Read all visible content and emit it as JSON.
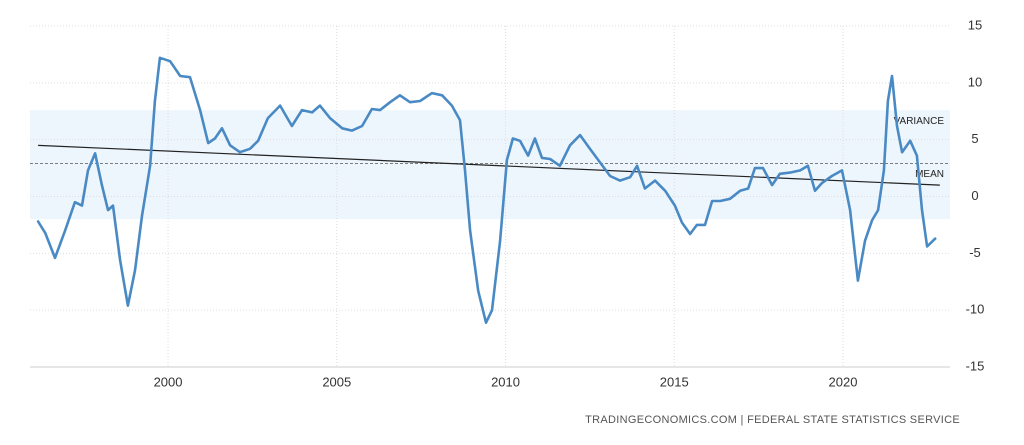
{
  "chart_data": {
    "type": "line",
    "x": [
      1996.15,
      1996.36,
      1996.65,
      1996.95,
      1997.24,
      1997.45,
      1997.63,
      1997.84,
      1998.04,
      1998.22,
      1998.37,
      1998.58,
      1998.81,
      1999.02,
      1999.23,
      1999.47,
      1999.61,
      1999.76,
      2000.06,
      2000.36,
      2000.65,
      2000.95,
      2001.19,
      2001.39,
      2001.6,
      2001.84,
      2002.13,
      2002.43,
      2002.67,
      2002.96,
      2003.32,
      2003.67,
      2003.97,
      2004.27,
      2004.5,
      2004.8,
      2005.16,
      2005.45,
      2005.75,
      2006.04,
      2006.28,
      2006.58,
      2006.87,
      2007.17,
      2007.47,
      2007.82,
      2008.12,
      2008.41,
      2008.65,
      2008.8,
      2008.95,
      2009.19,
      2009.42,
      2009.6,
      2009.84,
      2010.04,
      2010.22,
      2010.43,
      2010.67,
      2010.87,
      2011.08,
      2011.32,
      2011.61,
      2011.91,
      2012.21,
      2012.5,
      2012.8,
      2013.1,
      2013.39,
      2013.69,
      2013.9,
      2014.13,
      2014.43,
      2014.73,
      2015.02,
      2015.23,
      2015.47,
      2015.67,
      2015.91,
      2016.12,
      2016.36,
      2016.65,
      2016.95,
      2017.19,
      2017.39,
      2017.63,
      2017.9,
      2018.13,
      2018.43,
      2018.73,
      2018.96,
      2019.17,
      2019.38,
      2019.67,
      2019.97,
      2020.21,
      2020.44,
      2020.65,
      2020.86,
      2021.04,
      2021.21,
      2021.33,
      2021.45,
      2021.6,
      2021.75,
      2021.99,
      2022.19,
      2022.34,
      2022.49,
      2022.73
    ],
    "series": [
      {
        "color": "#4a8ac4",
        "values": [
          -2.2,
          -3.2,
          -5.4,
          -3,
          -0.5,
          -0.8,
          2.3,
          3.8,
          1,
          -1.2,
          -0.8,
          -5.6,
          -9.6,
          -6.5,
          -1.7,
          2.7,
          8.4,
          12.2,
          11.9,
          10.6,
          10.5,
          7.6,
          4.7,
          5.1,
          6,
          4.5,
          3.9,
          4.2,
          4.9,
          6.9,
          8,
          6.2,
          7.6,
          7.4,
          8,
          6.9,
          6,
          5.8,
          6.2,
          7.7,
          7.6,
          8.3,
          8.9,
          8.3,
          8.4,
          9.1,
          8.9,
          8,
          6.7,
          2.3,
          -3,
          -8.3,
          -11.1,
          -10,
          -3.9,
          3.2,
          5.1,
          4.9,
          3.6,
          5.1,
          3.4,
          3.3,
          2.7,
          4.5,
          5.4,
          4.2,
          3,
          1.8,
          1.4,
          1.7,
          2.7,
          0.7,
          1.4,
          0.5,
          -0.8,
          -2.3,
          -3.3,
          -2.5,
          -2.5,
          -0.4,
          -0.4,
          -0.2,
          0.5,
          0.7,
          2.5,
          2.5,
          1,
          2,
          2.1,
          2.3,
          2.7,
          0.5,
          1.2,
          1.8,
          2.3,
          -1.2,
          -7.4,
          -3.9,
          -2.1,
          -1.2,
          2.3,
          8.4,
          10.6,
          6.2,
          3.9,
          4.9,
          3.6,
          -1.2,
          -4.4,
          -3.7
        ]
      }
    ],
    "mean": 2.9,
    "mean_label": "MEAN",
    "variance_band": [
      -2,
      7.6
    ],
    "variance_label": "VARIANCE",
    "trend": {
      "x": [
        1996.15,
        2022.87
      ],
      "values": [
        4.5,
        1.0
      ],
      "color": "#222222"
    },
    "xlim": [
      1995.91,
      2023.17
    ],
    "xticks": [
      2000,
      2005,
      2010,
      2015,
      2020
    ],
    "ylim": [
      -15,
      15
    ],
    "yticks": [
      -15,
      -10,
      -5,
      0,
      5,
      10,
      15
    ],
    "grid": true,
    "source": "TRADINGECONOMICS.COM | FEDERAL STATE STATISTICS SERVICE"
  }
}
